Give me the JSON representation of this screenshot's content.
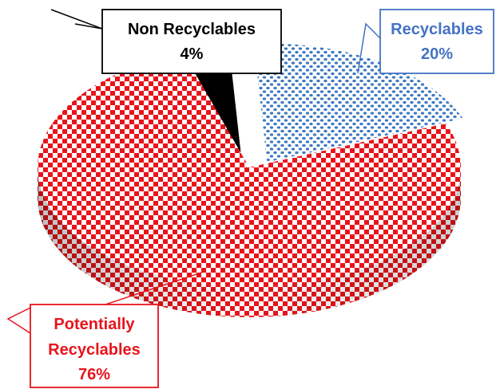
{
  "chart_data": {
    "type": "pie",
    "style": "3d-exploded",
    "slices": [
      {
        "label_line1": "Non Recyclables",
        "label_line2": "",
        "value": 4,
        "value_label": "4%",
        "color": "#000000"
      },
      {
        "label_line1": "Recyclables",
        "label_line2": "",
        "value": 20,
        "value_label": "20%",
        "color": "#3b78c2"
      },
      {
        "label_line1": "Potentially",
        "label_line2": "Recyclables",
        "value": 76,
        "value_label": "76%",
        "color": "#e8141b"
      }
    ]
  },
  "colors": {
    "non_recyclables_text": "#000000",
    "recyclables_text": "#4472c4",
    "potentially_recyclables_text": "#e8141b"
  }
}
